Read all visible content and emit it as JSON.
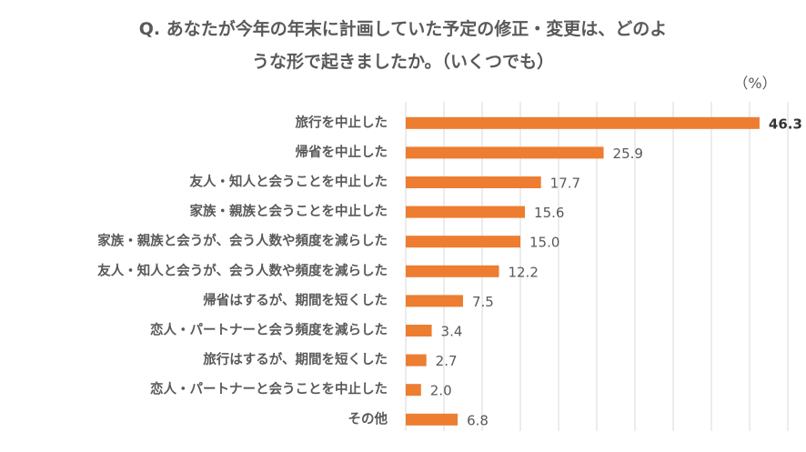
{
  "title": {
    "line1": "Q. あなたが今年の年末に計画していた予定の修正・変更は、どのよ",
    "line2": "うな形で起きましたか。（いくつでも）"
  },
  "unit": "（%）",
  "colors": {
    "bar": "#ED7D31",
    "grid": "#D9D9D9",
    "text": "#595959"
  },
  "chart_data": {
    "type": "bar",
    "orientation": "horizontal",
    "categories": [
      "旅行を中止した",
      "帰省を中止した",
      "友人・知人と会うことを中止した",
      "家族・親族と会うことを中止した",
      "家族・親族と会うが、会う人数や頻度を減らした",
      "友人・知人と会うが、会う人数や頻度を減らした",
      "帰省はするが、期間を短くした",
      "恋人・パートナーと会う頻度を減らした",
      "旅行はするが、期間を短くした",
      "恋人・パートナーと会うことを中止した",
      "その他"
    ],
    "values": [
      46.3,
      25.9,
      17.7,
      15.6,
      15.0,
      12.2,
      7.5,
      3.4,
      2.7,
      2.0,
      6.8
    ],
    "value_labels": [
      "46.3",
      "25.9",
      "17.7",
      "15.6",
      "15.0",
      "12.2",
      "7.5",
      "3.4",
      "2.7",
      "2.0",
      "6.8"
    ],
    "xlim": [
      0,
      50
    ],
    "grid": true,
    "legend": "none"
  }
}
